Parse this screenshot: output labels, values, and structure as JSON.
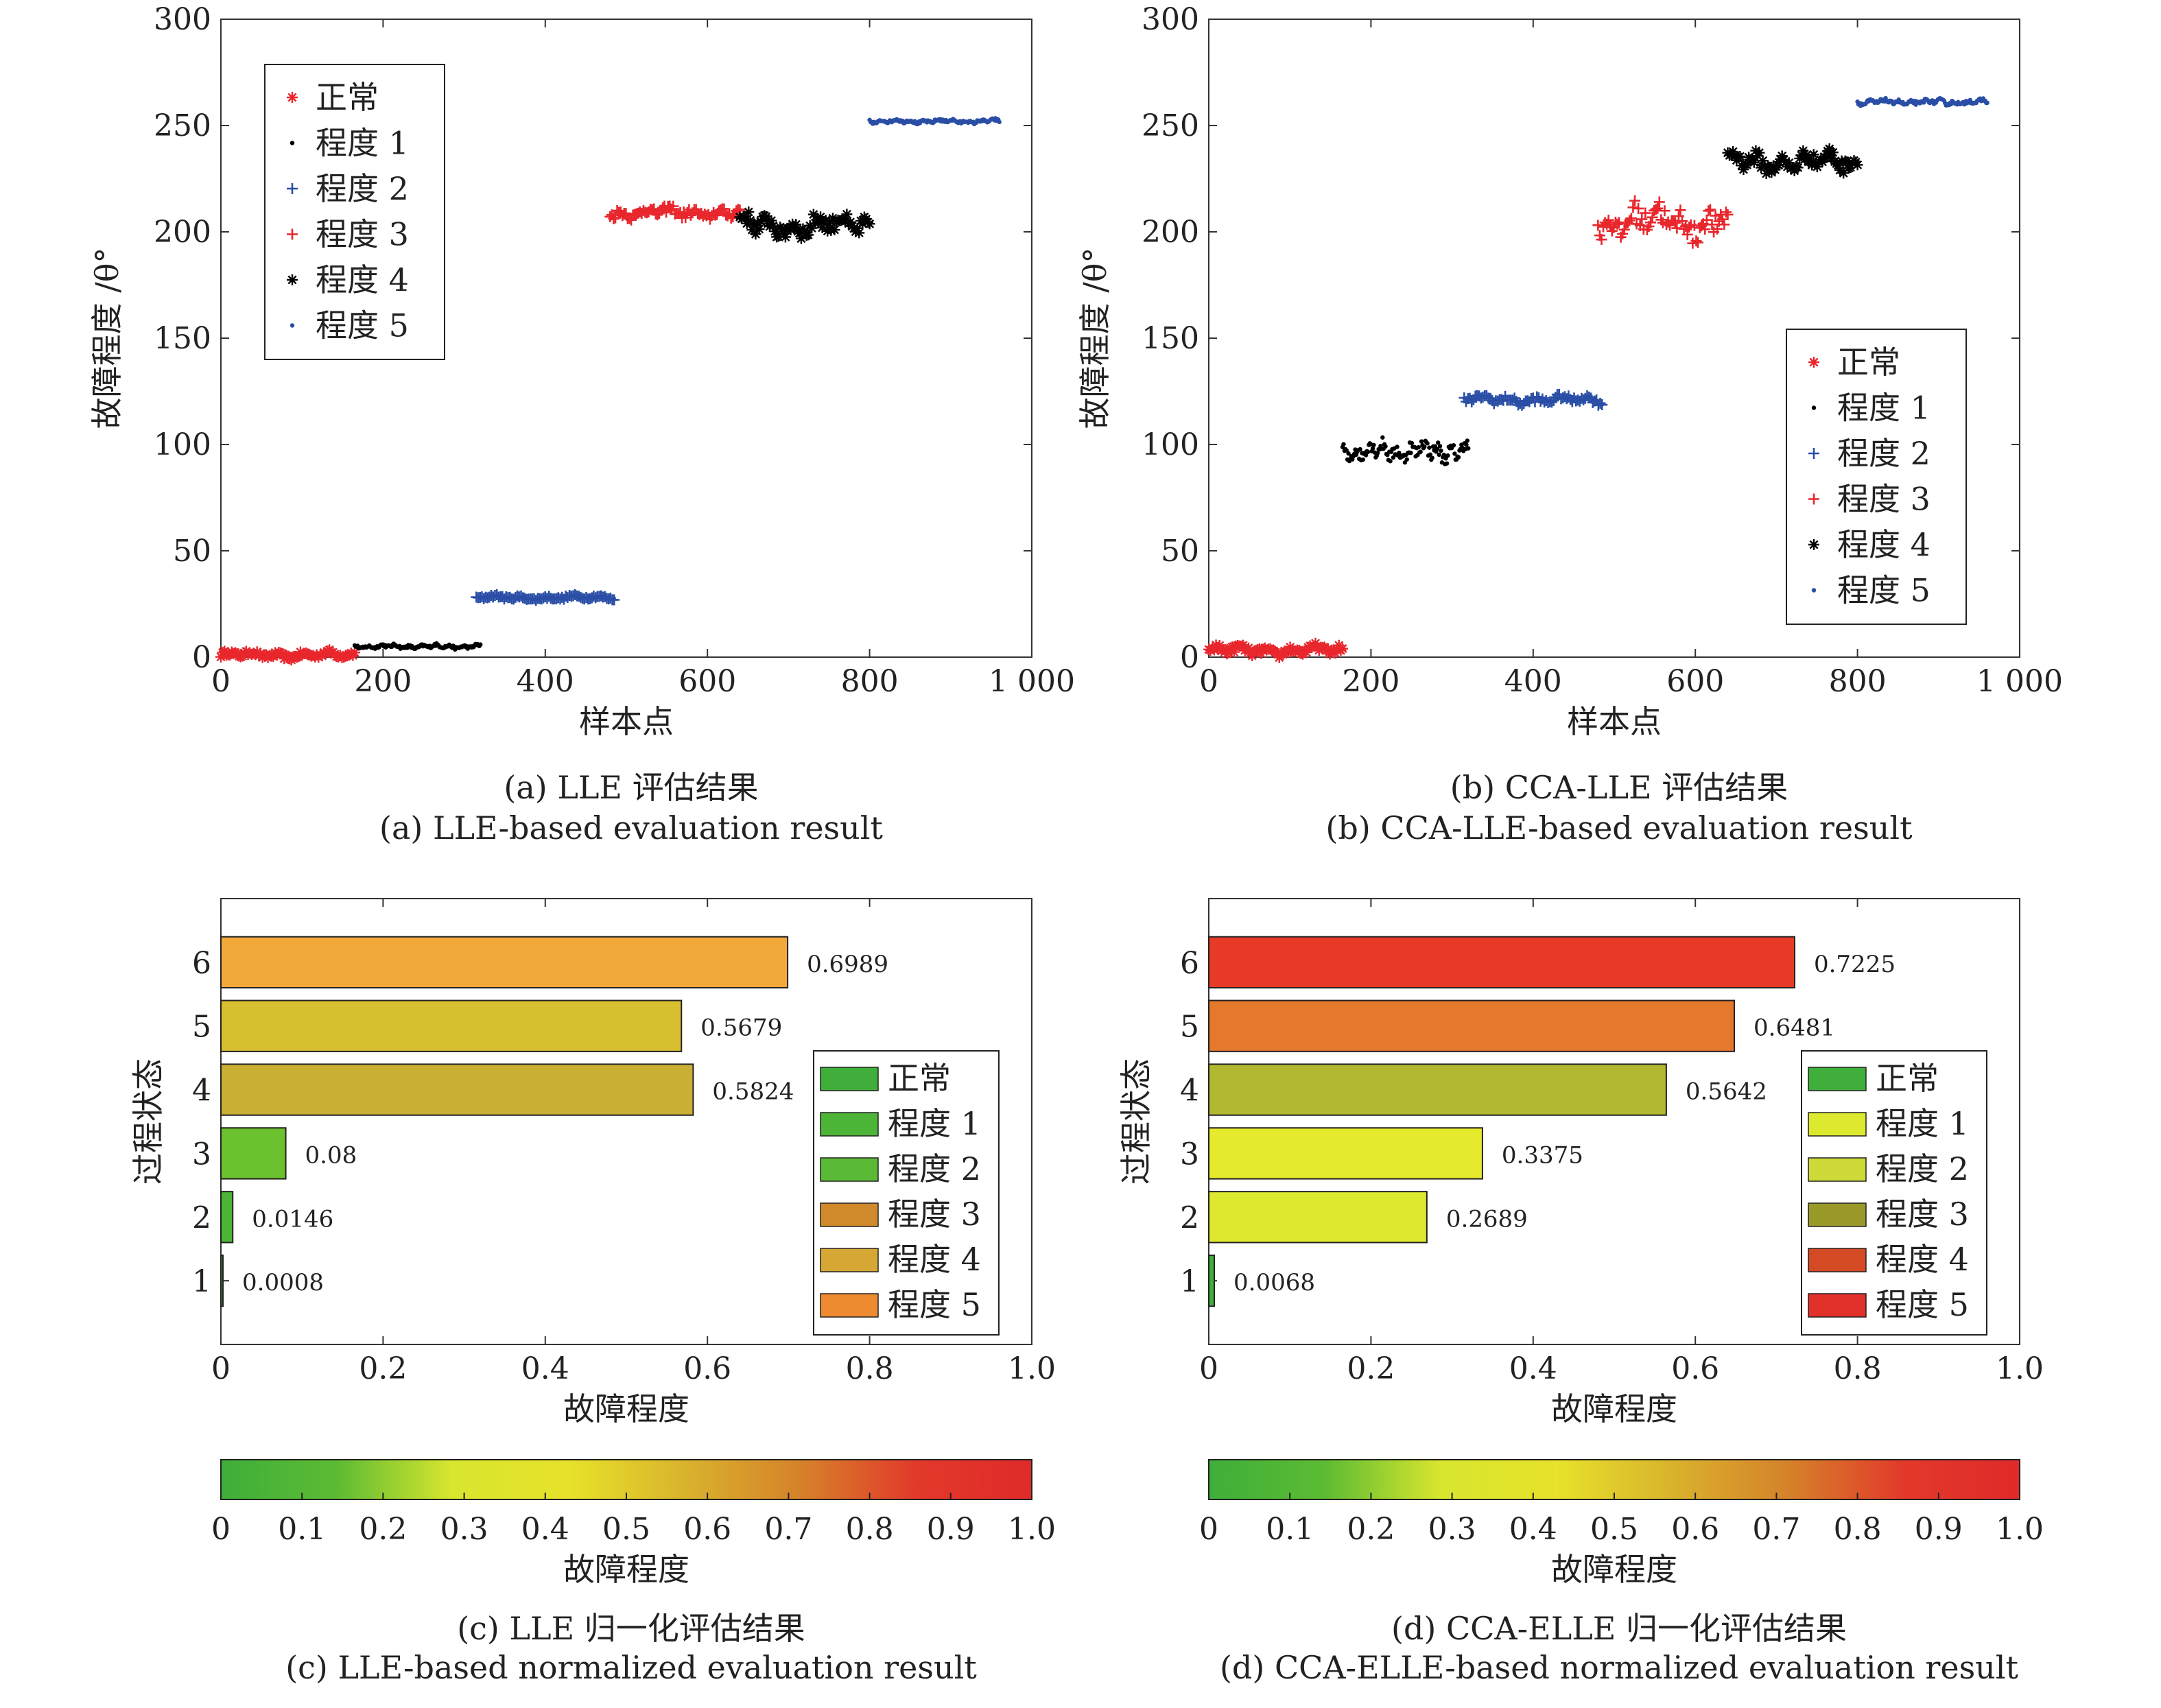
{
  "panels": {
    "a": {
      "caption_cn": "(a) LLE 评估结果",
      "caption_en": "(a) LLE-based evaluation result",
      "xlabel": "样本点",
      "ylabel": "故障程度 /θ°"
    },
    "b": {
      "caption_cn": "(b) CCA-LLE 评估结果",
      "caption_en": "(b) CCA-LLE-based evaluation result",
      "xlabel": "样本点",
      "ylabel": "故障程度 /θ°"
    },
    "c": {
      "caption_cn": "(c) LLE 归一化评估结果",
      "caption_en": "(c) LLE-based normalized evaluation result",
      "xlabel": "故障程度",
      "ylabel": "过程状态",
      "colorbar_label": "故障程度"
    },
    "d": {
      "caption_cn": "(d) CCA-ELLE 归一化评估结果",
      "caption_en": "(d) CCA-ELLE-based normalized evaluation result",
      "xlabel": "故障程度",
      "ylabel": "过程状态",
      "colorbar_label": "故障程度"
    }
  },
  "chart_data": [
    {
      "type": "scatter",
      "panel": "a",
      "xlim": [
        0,
        1000
      ],
      "ylim": [
        0,
        300
      ],
      "xticks": [
        "0",
        "200",
        "400",
        "600",
        "800",
        "1 000"
      ],
      "yticks": [
        "0",
        "50",
        "100",
        "150",
        "200",
        "250",
        "300"
      ],
      "legend_position": "top-left",
      "series": [
        {
          "name": "正常",
          "marker": "asterisk",
          "color": "#e8262c",
          "x_range": [
            0,
            165
          ],
          "y_mean": 1,
          "y_noise": 2.5
        },
        {
          "name": "程度 1",
          "marker": "dot",
          "color": "#000000",
          "x_range": [
            165,
            320
          ],
          "y_mean": 5,
          "y_noise": 1.5
        },
        {
          "name": "程度 2",
          "marker": "plus",
          "color": "#2a4ea6",
          "x_range": [
            315,
            485
          ],
          "y_mean": 28,
          "y_noise": 1.5
        },
        {
          "name": "程度 3",
          "marker": "plus",
          "color": "#e8262c",
          "x_range": [
            480,
            640
          ],
          "y_mean": 209,
          "y_noise": 4
        },
        {
          "name": "程度 4",
          "marker": "asterisk",
          "color": "#000000",
          "x_range": [
            640,
            800
          ],
          "y_mean": 203,
          "y_noise": 8
        },
        {
          "name": "程度 5",
          "marker": "dot",
          "color": "#2a4ea6",
          "x_range": [
            800,
            960
          ],
          "y_mean": 252,
          "y_noise": 1.5
        }
      ]
    },
    {
      "type": "scatter",
      "panel": "b",
      "xlim": [
        0,
        1000
      ],
      "ylim": [
        0,
        300
      ],
      "xticks": [
        "0",
        "200",
        "400",
        "600",
        "800",
        "1 000"
      ],
      "yticks": [
        "0",
        "50",
        "100",
        "150",
        "200",
        "250",
        "300"
      ],
      "legend_position": "bottom-right",
      "series": [
        {
          "name": "正常",
          "marker": "asterisk",
          "color": "#e8262c",
          "x_range": [
            0,
            165
          ],
          "y_mean": 3,
          "y_noise": 3.5
        },
        {
          "name": "程度 1",
          "marker": "dot",
          "color": "#000000",
          "x_range": [
            165,
            320
          ],
          "y_mean": 97,
          "y_noise": 7
        },
        {
          "name": "程度 2",
          "marker": "plus",
          "color": "#2a4ea6",
          "x_range": [
            315,
            485
          ],
          "y_mean": 121,
          "y_noise": 3
        },
        {
          "name": "程度 3",
          "marker": "plus",
          "color": "#e8262c",
          "x_range": [
            480,
            640
          ],
          "y_mean": 205,
          "y_noise": 12
        },
        {
          "name": "程度 4",
          "marker": "asterisk",
          "color": "#000000",
          "x_range": [
            640,
            800
          ],
          "y_mean": 233,
          "y_noise": 7
        },
        {
          "name": "程度 5",
          "marker": "dot",
          "color": "#2a4ea6",
          "x_range": [
            800,
            960
          ],
          "y_mean": 261,
          "y_noise": 2
        }
      ]
    },
    {
      "type": "bar",
      "panel": "c",
      "orientation": "horizontal",
      "categories": [
        "1",
        "2",
        "3",
        "4",
        "5",
        "6"
      ],
      "values": [
        0.0008,
        0.0146,
        0.08,
        0.5824,
        0.5679,
        0.6989
      ],
      "labels": [
        "0.0008",
        "0.0146",
        "0.08",
        "0.5824",
        "0.5679",
        "0.6989"
      ],
      "colors": [
        "#3fae3a",
        "#4cb437",
        "#6cc12f",
        "#c9b035",
        "#d8bf30",
        "#f2a93a"
      ],
      "xlim": [
        0,
        1
      ],
      "xticks": [
        "0",
        "0.2",
        "0.4",
        "0.6",
        "0.8",
        "1.0"
      ],
      "legend": [
        "正常",
        "程度 1",
        "程度 2",
        "程度 3",
        "程度 4",
        "程度 5"
      ],
      "legend_colors": [
        "#3fae3a",
        "#4cb437",
        "#5bba35",
        "#d08a2c",
        "#d6a735",
        "#ee8a30"
      ],
      "legend_position": "bottom-right"
    },
    {
      "type": "bar",
      "panel": "d",
      "orientation": "horizontal",
      "categories": [
        "1",
        "2",
        "3",
        "4",
        "5",
        "6"
      ],
      "values": [
        0.0068,
        0.2689,
        0.3375,
        0.5642,
        0.6481,
        0.7225
      ],
      "labels": [
        "0.0068",
        "0.2689",
        "0.3375",
        "0.5642",
        "0.6481",
        "0.7225"
      ],
      "colors": [
        "#3fae3a",
        "#dde92e",
        "#e6ea2c",
        "#b3b832",
        "#e4782c",
        "#e83a26"
      ],
      "xlim": [
        0,
        1
      ],
      "xticks": [
        "0",
        "0.2",
        "0.4",
        "0.6",
        "0.8",
        "1.0"
      ],
      "legend": [
        "正常",
        "程度 1",
        "程度 2",
        "程度 3",
        "程度 4",
        "程度 5"
      ],
      "legend_colors": [
        "#3fae3a",
        "#dde92e",
        "#cfd938",
        "#9a9a2a",
        "#d44a25",
        "#e2302a"
      ],
      "legend_position": "bottom-right"
    }
  ],
  "colorbar": {
    "ticks": [
      "0",
      "0.1",
      "0.2",
      "0.3",
      "0.4",
      "0.5",
      "0.6",
      "0.7",
      "0.8",
      "0.9",
      "1.0"
    ],
    "stops": [
      "#3fae3a",
      "#5cbb33",
      "#d9e62e",
      "#e7e22a",
      "#d9b32c",
      "#d6822a",
      "#e2392a",
      "#e02a2a"
    ]
  }
}
